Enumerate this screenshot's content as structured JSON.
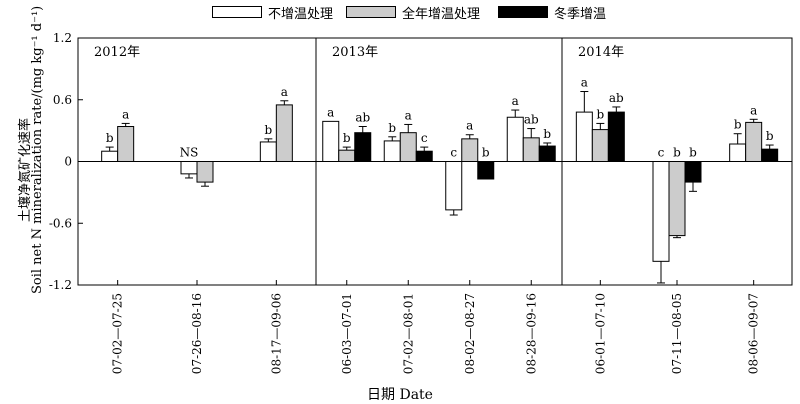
{
  "chart_data": {
    "type": "bar",
    "legend": [
      {
        "label": "不增温处理",
        "color": "#ffffff"
      },
      {
        "label": "全年增温处理",
        "color": "#cccccc"
      },
      {
        "label": "冬季增温",
        "color": "#000000"
      }
    ],
    "ylabel_cn": "土壤净氮矿化速率",
    "ylabel_en": "Soil net N mineralization rate/(mg kg⁻¹ d⁻¹)",
    "xlabel": "日期 Date",
    "ylim": [
      -1.2,
      1.2
    ],
    "yticks": [
      "1.2",
      "0.6",
      "0",
      "-0.6",
      "-1.2"
    ],
    "panels": [
      {
        "year": "2012年",
        "categories": [
          "07-02—07-25",
          "07-26—08-16",
          "08-17—09-06"
        ],
        "series": [
          {
            "name": "不增温处理",
            "values": [
              0.1,
              -0.12,
              0.19
            ],
            "errors": [
              0.04,
              0.04,
              0.03
            ]
          },
          {
            "name": "全年增温处理",
            "values": [
              0.34,
              -0.2,
              0.55
            ],
            "errors": [
              0.03,
              0.04,
              0.04
            ]
          }
        ],
        "annotations": [
          [
            "b",
            "NS",
            "b"
          ],
          [
            "a",
            "",
            "a"
          ]
        ]
      },
      {
        "year": "2013年",
        "categories": [
          "06-03—07-01",
          "07-02—08-01",
          "08-02—08-27",
          "08-28—09-16"
        ],
        "series": [
          {
            "name": "不增温处理",
            "values": [
              0.39,
              0.2,
              -0.47,
              0.43
            ],
            "errors": [
              0.0,
              0.04,
              0.05,
              0.07
            ]
          },
          {
            "name": "全年增温处理",
            "values": [
              0.11,
              0.28,
              0.22,
              0.23
            ],
            "errors": [
              0.03,
              0.08,
              0.04,
              0.09
            ]
          },
          {
            "name": "冬季增温",
            "values": [
              0.28,
              0.1,
              -0.17,
              0.15
            ],
            "errors": [
              0.06,
              0.04,
              0.0,
              0.03
            ]
          }
        ],
        "annotations": [
          [
            "a",
            "b",
            "c",
            "a"
          ],
          [
            "b",
            "a",
            "a",
            "ab"
          ],
          [
            "ab",
            "c",
            "b",
            "b"
          ]
        ]
      },
      {
        "year": "2014年",
        "categories": [
          "06-01—07-10",
          "07-11—08-05",
          "08-06—09-07"
        ],
        "series": [
          {
            "name": "不增温处理",
            "values": [
              0.48,
              -0.97,
              0.17
            ],
            "errors": [
              0.2,
              0.21,
              0.1
            ]
          },
          {
            "name": "全年增温处理",
            "values": [
              0.31,
              -0.72,
              0.38
            ],
            "errors": [
              0.06,
              0.02,
              0.03
            ]
          },
          {
            "name": "冬季增温",
            "values": [
              0.48,
              -0.2,
              0.12
            ],
            "errors": [
              0.05,
              0.09,
              0.04
            ]
          }
        ],
        "annotations": [
          [
            "a",
            "c",
            "b"
          ],
          [
            "b",
            "b",
            "a"
          ],
          [
            "ab",
            "b",
            "b"
          ]
        ]
      }
    ]
  }
}
